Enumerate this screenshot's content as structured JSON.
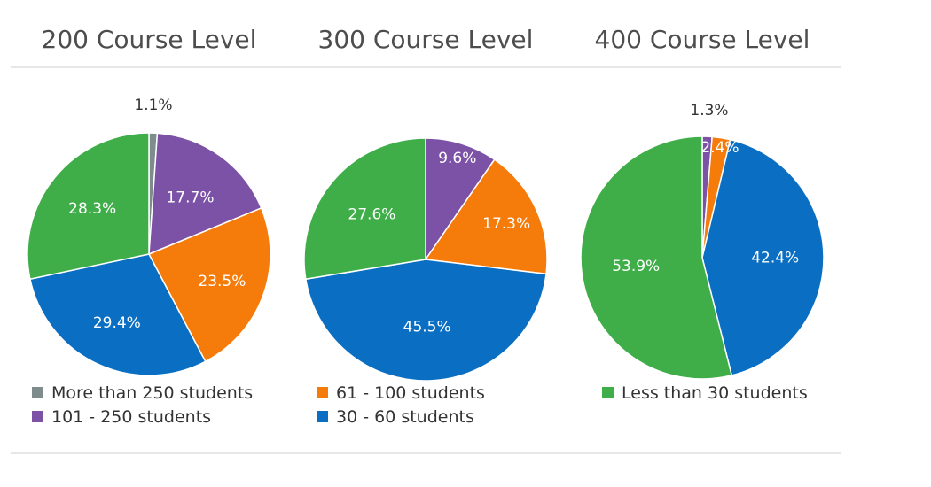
{
  "chart_data": {
    "type": "pie",
    "charts": [
      {
        "title": "200 Course Level",
        "slices": [
          {
            "key": "gt250",
            "value": 1.1,
            "label": "1.1%"
          },
          {
            "key": "s101_250",
            "value": 17.7,
            "label": "17.7%"
          },
          {
            "key": "s61_100",
            "value": 23.5,
            "label": "23.5%"
          },
          {
            "key": "s30_60",
            "value": 29.4,
            "label": "29.4%"
          },
          {
            "key": "lt30",
            "value": 28.3,
            "label": "28.3%"
          }
        ]
      },
      {
        "title": "300 Course Level",
        "slices": [
          {
            "key": "s101_250",
            "value": 9.6,
            "label": "9.6%"
          },
          {
            "key": "s61_100",
            "value": 17.3,
            "label": "17.3%"
          },
          {
            "key": "s30_60",
            "value": 45.5,
            "label": "45.5%"
          },
          {
            "key": "lt30",
            "value": 27.6,
            "label": "27.6%"
          }
        ]
      },
      {
        "title": "400 Course Level",
        "slices": [
          {
            "key": "s101_250",
            "value": 1.3,
            "label": "1.3%"
          },
          {
            "key": "s61_100",
            "value": 2.4,
            "label": "2.4%"
          },
          {
            "key": "s30_60",
            "value": 42.4,
            "label": "42.4%"
          },
          {
            "key": "lt30",
            "value": 53.9,
            "label": "53.9%"
          }
        ]
      }
    ],
    "legend": [
      {
        "key": "gt250",
        "label": "More than 250 students",
        "color": "#7f8c8d"
      },
      {
        "key": "s101_250",
        "label": "101 - 250 students",
        "color": "#7b52a6"
      },
      {
        "key": "s61_100",
        "label": "61 - 100 students",
        "color": "#f57c0a"
      },
      {
        "key": "s30_60",
        "label": "30 - 60 students",
        "color": "#0a6fc2"
      },
      {
        "key": "lt30",
        "label": "Less than 30 students",
        "color": "#3fae49"
      }
    ]
  }
}
